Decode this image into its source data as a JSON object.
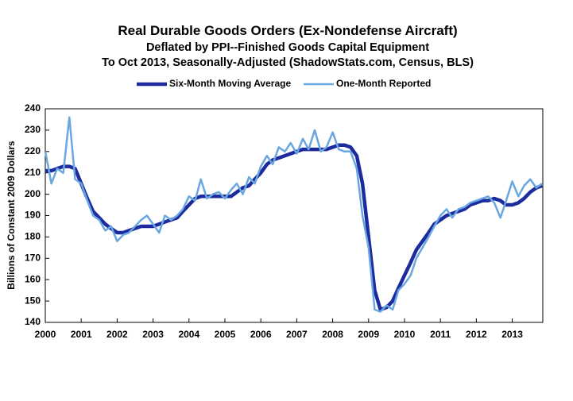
{
  "chart_data": {
    "type": "line",
    "title": "Real Durable Goods Orders (Ex-Nondefense Aircraft)",
    "subtitle": [
      "Deflated by PPI--Finished Goods Capital Equipment",
      "To Oct 2013, Seasonally-Adjusted (ShadowStats.com, Census, BLS)"
    ],
    "y_label": "Billions of Constant 2009 Dollars",
    "x": [
      2000,
      2000.17,
      2000.33,
      2000.5,
      2000.67,
      2000.83,
      2001,
      2001.17,
      2001.33,
      2001.5,
      2001.67,
      2001.83,
      2002,
      2002.17,
      2002.33,
      2002.5,
      2002.67,
      2002.83,
      2003,
      2003.17,
      2003.33,
      2003.5,
      2003.67,
      2003.83,
      2004,
      2004.17,
      2004.33,
      2004.5,
      2004.67,
      2004.83,
      2005,
      2005.17,
      2005.33,
      2005.5,
      2005.67,
      2005.83,
      2006,
      2006.17,
      2006.33,
      2006.5,
      2006.67,
      2006.83,
      2007,
      2007.17,
      2007.33,
      2007.5,
      2007.67,
      2007.83,
      2008,
      2008.17,
      2008.33,
      2008.5,
      2008.67,
      2008.83,
      2009,
      2009.17,
      2009.33,
      2009.5,
      2009.67,
      2009.83,
      2010,
      2010.17,
      2010.33,
      2010.5,
      2010.67,
      2010.83,
      2011,
      2011.17,
      2011.33,
      2011.5,
      2011.67,
      2011.83,
      2012,
      2012.17,
      2012.33,
      2012.5,
      2012.67,
      2012.83,
      2013,
      2013.17,
      2013.33,
      2013.5,
      2013.67,
      2013.83
    ],
    "series": [
      {
        "name": "Six-Month Moving Average",
        "color": "#1c2b9e",
        "width": 4.5,
        "values": [
          211,
          211,
          212,
          213,
          213,
          212,
          205,
          198,
          192,
          189,
          186,
          184,
          182,
          182,
          183,
          184,
          185,
          185,
          185,
          186,
          187,
          188,
          189,
          192,
          195,
          198,
          199,
          199,
          199,
          199,
          199,
          199,
          201,
          203,
          204,
          207,
          210,
          214,
          216,
          217,
          218,
          219,
          220,
          221,
          221,
          221,
          221,
          221,
          222,
          223,
          223,
          222,
          218,
          205,
          180,
          155,
          146,
          147,
          150,
          156,
          162,
          168,
          174,
          178,
          182,
          186,
          188,
          190,
          191,
          192,
          193,
          195,
          196,
          197,
          197,
          198,
          197,
          195,
          195,
          196,
          198,
          201,
          203,
          204
        ]
      },
      {
        "name": "One-Month Reported",
        "color": "#6aa6e0",
        "width": 2.5,
        "values": [
          220,
          205,
          212,
          210,
          236,
          207,
          205,
          197,
          190,
          188,
          183,
          185,
          178,
          181,
          182,
          185,
          188,
          190,
          186,
          182,
          190,
          188,
          190,
          193,
          199,
          197,
          207,
          198,
          200,
          201,
          198,
          202,
          205,
          200,
          208,
          205,
          213,
          218,
          214,
          222,
          220,
          224,
          219,
          226,
          221,
          230,
          220,
          222,
          229,
          221,
          220,
          220,
          212,
          190,
          175,
          146,
          145,
          148,
          146,
          155,
          158,
          162,
          170,
          175,
          180,
          185,
          190,
          193,
          189,
          193,
          194,
          196,
          197,
          198,
          199,
          196,
          189,
          197,
          206,
          199,
          204,
          207,
          203,
          205
        ]
      }
    ],
    "xlim": [
      2000,
      2013.85
    ],
    "xticks": [
      2000,
      2001,
      2002,
      2003,
      2004,
      2005,
      2006,
      2007,
      2008,
      2009,
      2010,
      2011,
      2012,
      2013
    ],
    "ylim": [
      140,
      240
    ],
    "yticks": [
      140,
      150,
      160,
      170,
      180,
      190,
      200,
      210,
      220,
      230,
      240
    ],
    "grid": false
  }
}
